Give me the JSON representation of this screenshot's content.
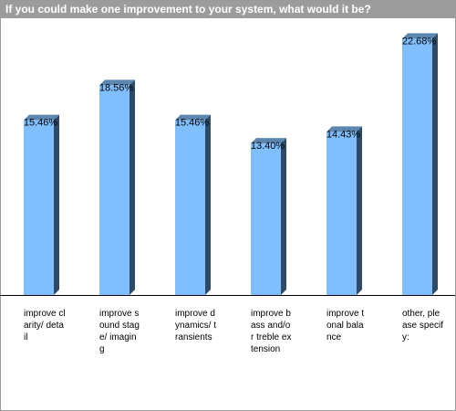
{
  "chart_data": {
    "type": "bar",
    "title": "If you could make one improvement to your system, what would it be?",
    "categories": [
      "improve clarity/ detail",
      "improve sound stage/ imaging",
      "improve dynamics/ transients",
      "improve bass and/or treble extension",
      "improve tonal balance",
      "other, please specify:"
    ],
    "values": [
      15.46,
      18.56,
      15.46,
      13.4,
      14.43,
      22.68
    ],
    "value_labels": [
      "15.46%",
      "18.56%",
      "15.46%",
      "13.40%",
      "14.43%",
      "22.68%"
    ],
    "ylim": [
      0,
      24
    ],
    "grid": false,
    "bar_color": "#80bfff",
    "bar_side_color": "#2e4a66",
    "bar_top_color": "#5a86b0"
  }
}
